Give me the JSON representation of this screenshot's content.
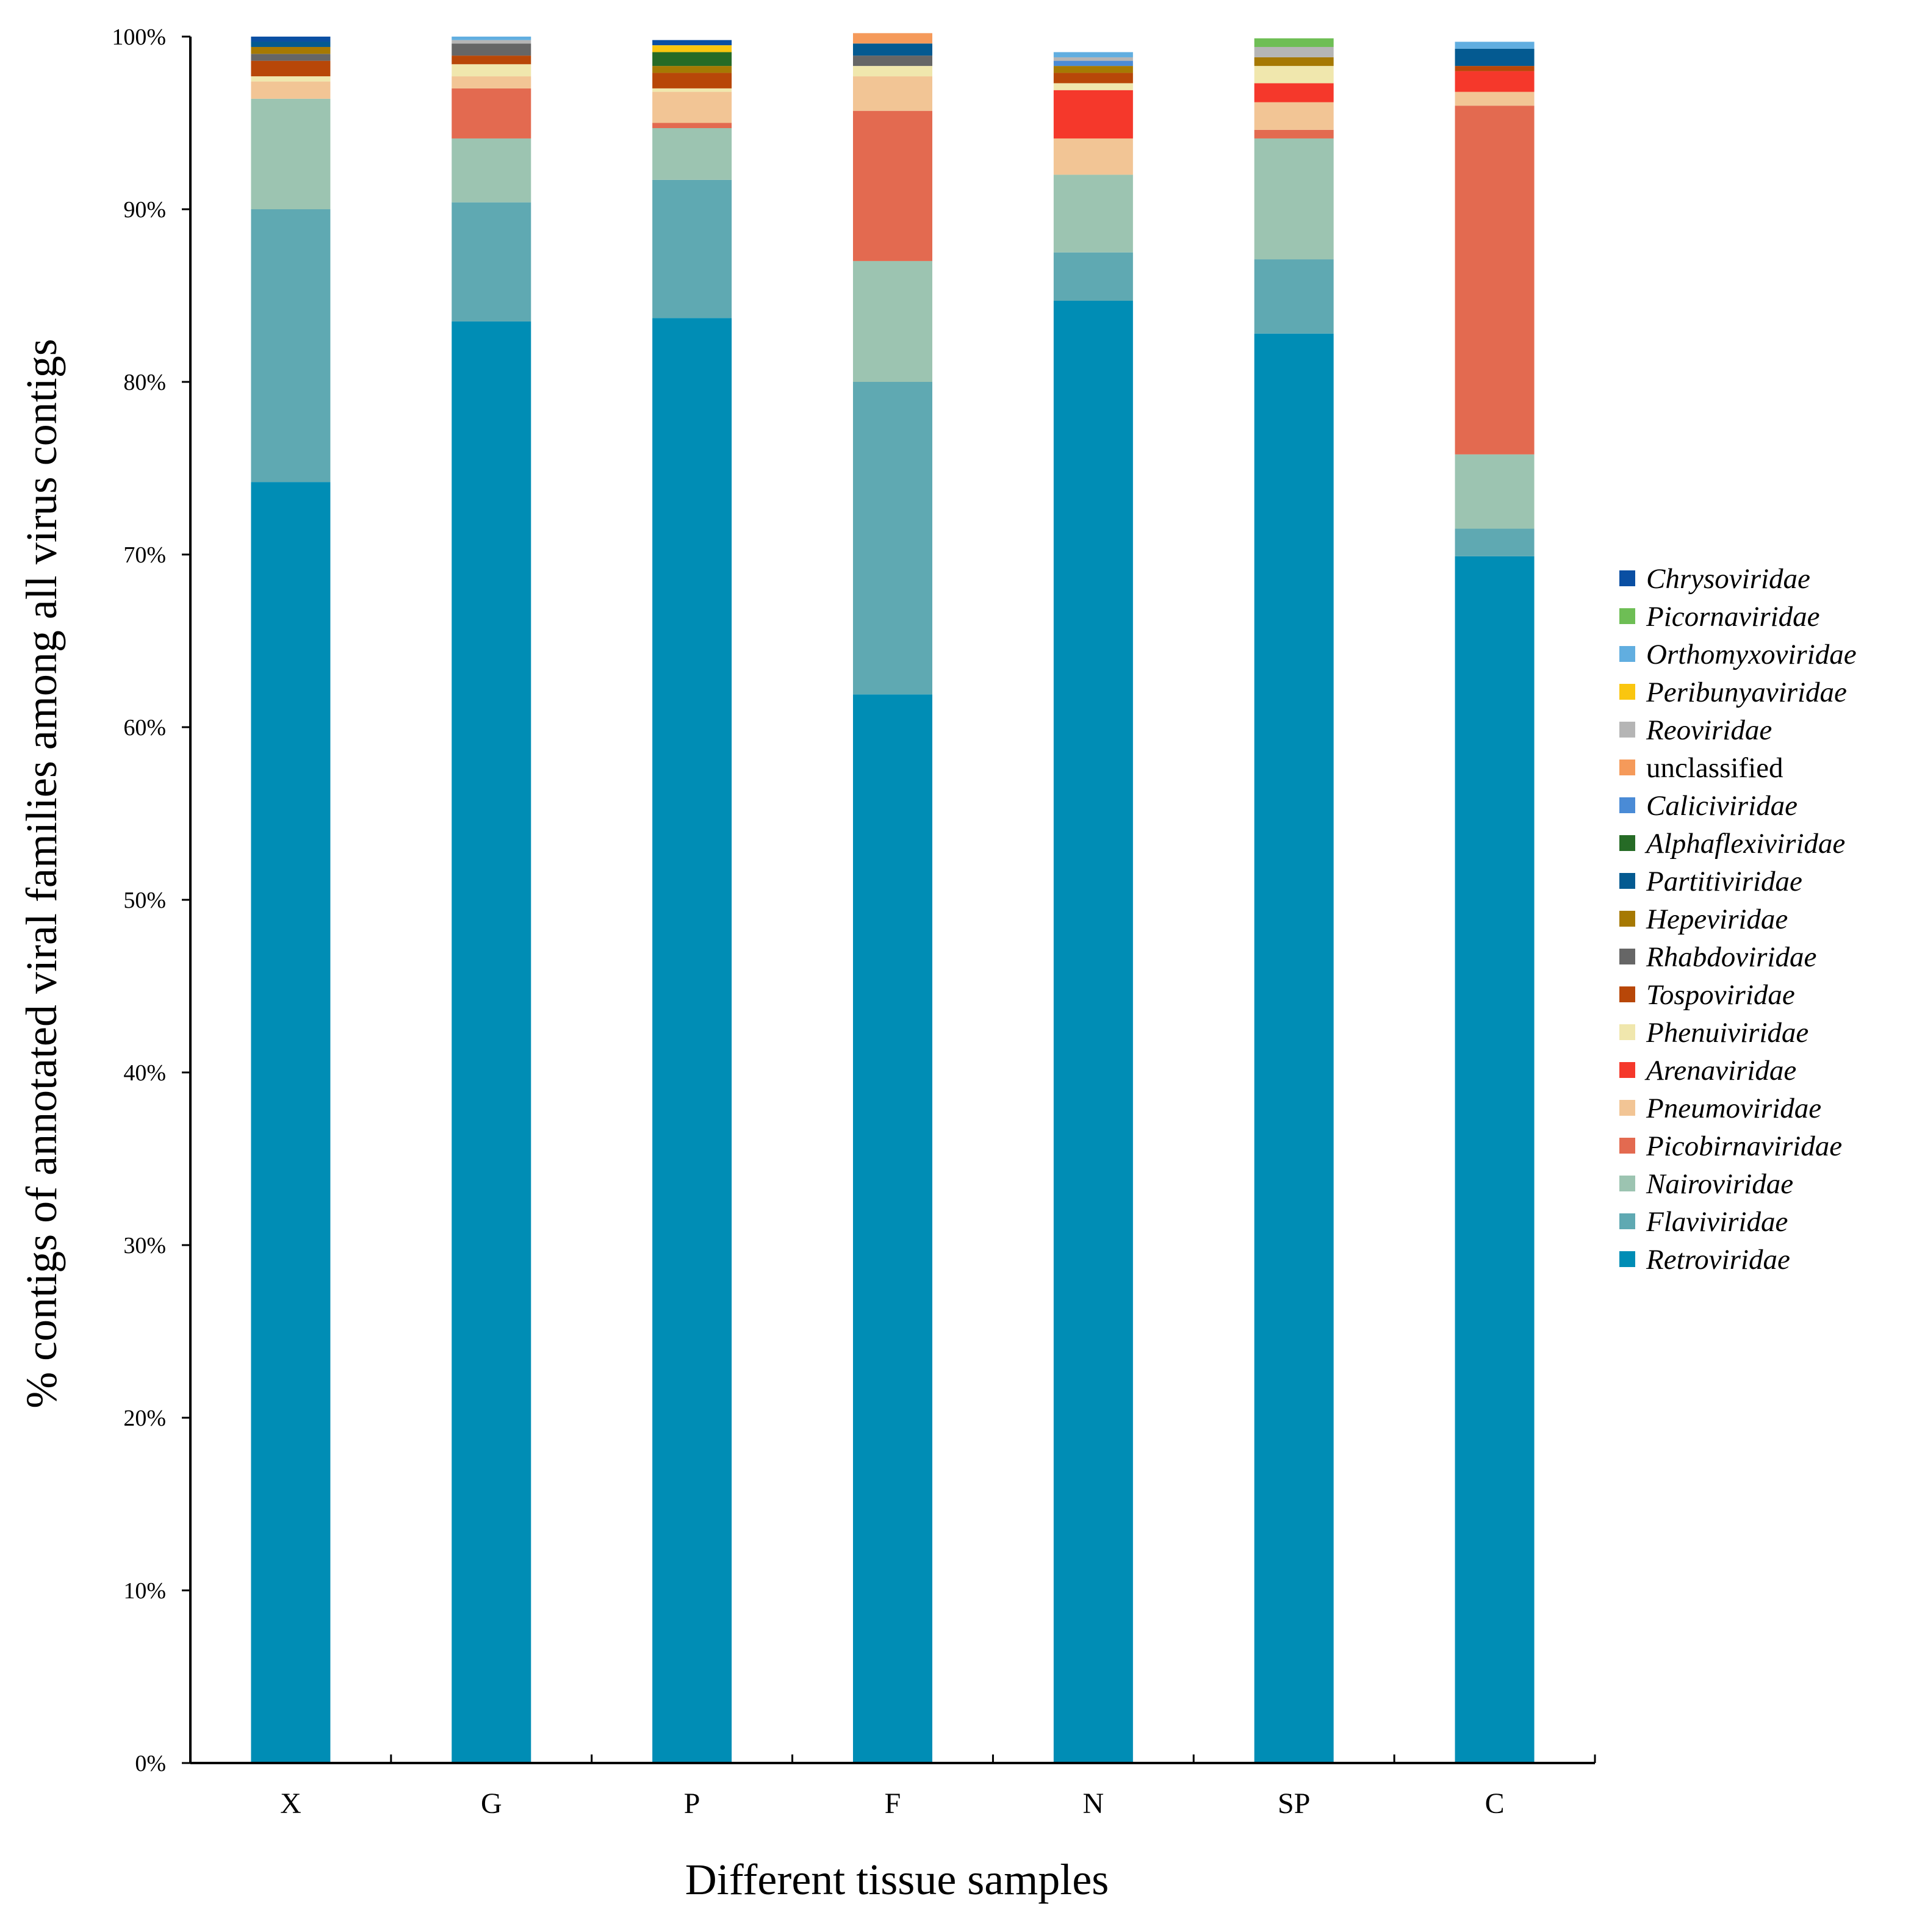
{
  "chart_data": {
    "type": "bar",
    "stacked": true,
    "title": "",
    "xlabel": "Different tissue samples",
    "ylabel": "% contigs of annotated viral families among all virus contigs",
    "ylim": [
      0,
      100
    ],
    "y_ticks": [
      "0%",
      "10%",
      "20%",
      "30%",
      "40%",
      "50%",
      "60%",
      "70%",
      "80%",
      "90%",
      "100%"
    ],
    "y_tick_values": [
      0,
      10,
      20,
      30,
      40,
      50,
      60,
      70,
      80,
      90,
      100
    ],
    "legend_position": "right",
    "grid": false,
    "categories": [
      "X",
      "G",
      "P",
      "F",
      "N",
      "SP",
      "C"
    ],
    "series": [
      {
        "name": "Retroviridae",
        "color": "#008db5",
        "italic": true,
        "values": [
          74.2,
          83.5,
          83.7,
          61.9,
          84.7,
          82.8,
          69.9
        ]
      },
      {
        "name": "Flaviviridae",
        "color": "#5fa9b2",
        "italic": true,
        "values": [
          15.8,
          6.9,
          8.0,
          18.1,
          2.8,
          4.3,
          1.6
        ]
      },
      {
        "name": "Nairoviridae",
        "color": "#9cc4b1",
        "italic": true,
        "values": [
          6.4,
          3.7,
          3.0,
          7.0,
          4.5,
          7.0,
          4.3
        ]
      },
      {
        "name": "Picobirnaviridae",
        "color": "#e36a50",
        "italic": true,
        "values": [
          0.0,
          2.9,
          0.3,
          8.7,
          0.0,
          0.5,
          20.2
        ]
      },
      {
        "name": "Pneumoviridae",
        "color": "#f2c595",
        "italic": true,
        "values": [
          1.0,
          0.7,
          1.8,
          2.0,
          2.1,
          1.6,
          0.8
        ]
      },
      {
        "name": "Arenaviridae",
        "color": "#f5382b",
        "italic": true,
        "values": [
          0.0,
          0.0,
          0.0,
          0.0,
          2.8,
          1.1,
          1.2
        ]
      },
      {
        "name": "Phenuiviridae",
        "color": "#f0e7ad",
        "italic": true,
        "values": [
          0.3,
          0.7,
          0.2,
          0.6,
          0.4,
          1.0,
          0.0
        ]
      },
      {
        "name": "Tospoviridae",
        "color": "#b84708",
        "italic": true,
        "values": [
          0.9,
          0.5,
          0.9,
          0.0,
          0.6,
          0.0,
          0.3
        ]
      },
      {
        "name": "Rhabdoviridae",
        "color": "#666666",
        "italic": true,
        "values": [
          0.4,
          0.7,
          0.0,
          0.6,
          0.0,
          0.0,
          0.0
        ]
      },
      {
        "name": "Hepeviridae",
        "color": "#a67903",
        "italic": true,
        "values": [
          0.4,
          0.0,
          0.4,
          0.0,
          0.4,
          0.5,
          0.0
        ]
      },
      {
        "name": "Partitiviridae",
        "color": "#045a91",
        "italic": true,
        "values": [
          0.3,
          0.0,
          0.0,
          0.7,
          0.0,
          0.0,
          1.0
        ]
      },
      {
        "name": "Alphaflexiviridae",
        "color": "#266b26",
        "italic": true,
        "values": [
          0.0,
          0.0,
          0.8,
          0.0,
          0.0,
          0.0,
          0.0
        ]
      },
      {
        "name": "Caliciviridae",
        "color": "#4a8bd6",
        "italic": true,
        "values": [
          0.0,
          0.0,
          0.0,
          0.0,
          0.3,
          0.0,
          0.0
        ]
      },
      {
        "name": "unclassified",
        "color": "#f59a5a",
        "italic": false,
        "values": [
          0.0,
          0.0,
          0.0,
          0.6,
          0.0,
          0.0,
          0.0
        ]
      },
      {
        "name": "Reoviridae",
        "color": "#b5b5b5",
        "italic": true,
        "values": [
          0.0,
          0.2,
          0.0,
          0.0,
          0.2,
          0.6,
          0.0
        ]
      },
      {
        "name": "Peribunyaviridae",
        "color": "#fac60f",
        "italic": true,
        "values": [
          0.0,
          0.0,
          0.4,
          0.0,
          0.0,
          0.0,
          0.0
        ]
      },
      {
        "name": "Orthomyxoviridae",
        "color": "#61aee0",
        "italic": true,
        "values": [
          0.0,
          0.2,
          0.0,
          0.0,
          0.3,
          0.0,
          0.4
        ]
      },
      {
        "name": "Picornaviridae",
        "color": "#6ebe55",
        "italic": true,
        "values": [
          0.0,
          0.0,
          0.0,
          0.0,
          0.0,
          0.5,
          0.0
        ]
      },
      {
        "name": "Chrysoviridae",
        "color": "#0a4fa3",
        "italic": true,
        "values": [
          0.3,
          0.0,
          0.3,
          0.0,
          0.0,
          0.0,
          0.0
        ]
      }
    ]
  }
}
